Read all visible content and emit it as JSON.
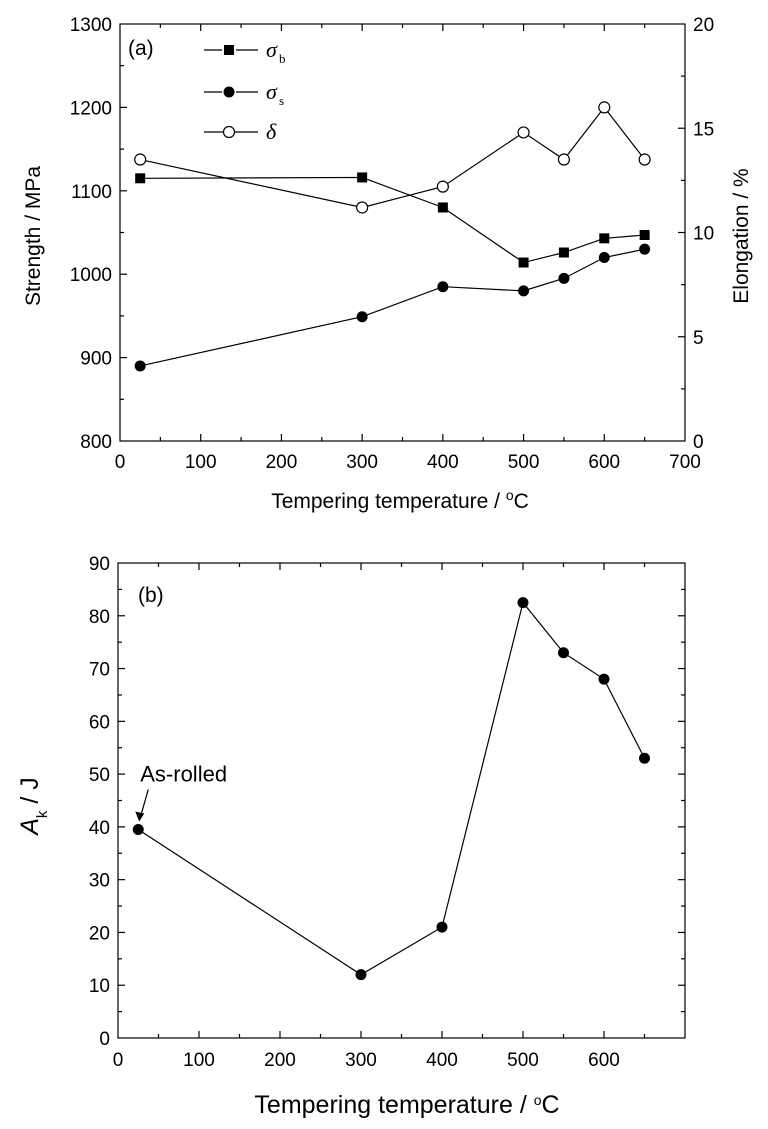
{
  "chart_data": [
    {
      "type": "line",
      "panel_label": "(a)",
      "xlabel": "Tempering temperature / ",
      "xlabel_unit": "°C",
      "ylabel": "Strength / MPa",
      "y2label": "Elongation / %",
      "xlim": [
        0,
        700
      ],
      "ylim": [
        800,
        1300
      ],
      "y2lim": [
        0,
        20
      ],
      "x_ticks": [
        "0",
        "100",
        "200",
        "300",
        "400",
        "500",
        "600",
        "700"
      ],
      "y_ticks": [
        "800",
        "900",
        "1000",
        "1100",
        "1200",
        "1300"
      ],
      "y2_ticks": [
        "0",
        "5",
        "10",
        "15",
        "20"
      ],
      "legend_position": "top-left",
      "grid": false,
      "series": [
        {
          "name": "σ",
          "name_sub": "b",
          "axis": "left",
          "marker": "filled-square",
          "x": [
            25,
            300,
            400,
            500,
            550,
            600,
            650
          ],
          "values": [
            1115,
            1116,
            1080,
            1014,
            1026,
            1043,
            1047
          ]
        },
        {
          "name": "σ",
          "name_sub": "s",
          "axis": "left",
          "marker": "filled-circle",
          "x": [
            25,
            300,
            400,
            500,
            550,
            600,
            650
          ],
          "values": [
            890,
            949,
            985,
            980,
            995,
            1020,
            1030
          ]
        },
        {
          "name": "δ",
          "name_sub": "",
          "axis": "right",
          "marker": "open-circle",
          "x": [
            25,
            300,
            400,
            500,
            550,
            600,
            650
          ],
          "values": [
            13.5,
            11.2,
            12.2,
            14.8,
            13.5,
            16.0,
            13.5
          ]
        }
      ]
    },
    {
      "type": "line",
      "panel_label": "(b)",
      "xlabel": "Tempering temperature / ",
      "xlabel_unit": "°C",
      "ylabel": "A",
      "ylabel_sub": "k",
      "ylabel_unit": " / J",
      "xlim": [
        0,
        700
      ],
      "ylim": [
        0,
        90
      ],
      "x_ticks": [
        "0",
        "100",
        "200",
        "300",
        "400",
        "500",
        "600"
      ],
      "y_ticks": [
        "0",
        "10",
        "20",
        "30",
        "40",
        "50",
        "60",
        "70",
        "80",
        "90"
      ],
      "grid": false,
      "annotation": {
        "text": "As-rolled",
        "x": 25,
        "y": 39.5
      },
      "series": [
        {
          "marker": "filled-circle",
          "x": [
            25,
            300,
            400,
            500,
            550,
            600,
            650
          ],
          "values": [
            39.5,
            12,
            21,
            82.5,
            73,
            68,
            53
          ]
        }
      ]
    }
  ]
}
